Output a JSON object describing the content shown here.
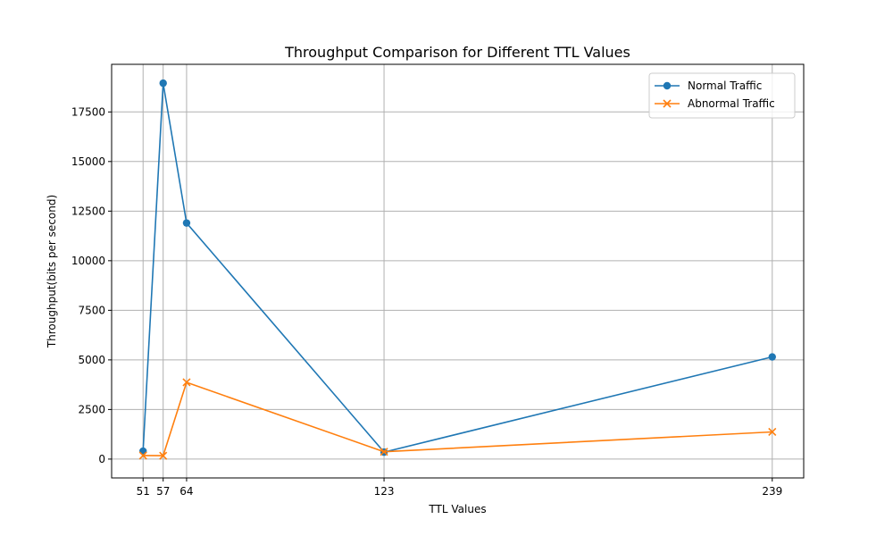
{
  "chart_data": {
    "type": "line",
    "title": "Throughput Comparison for Different TTL Values",
    "xlabel": "TTL Values",
    "ylabel": "Throughput(bits per second)",
    "x": [
      51,
      57,
      64,
      123,
      239
    ],
    "xlim": [
      41.6,
      248.4
    ],
    "ylim": [
      -950,
      19900
    ],
    "x_ticks": [
      "51",
      "57",
      "64",
      "123",
      "239"
    ],
    "y_ticks": [
      0,
      2500,
      5000,
      7500,
      10000,
      12500,
      15000,
      17500
    ],
    "grid": true,
    "legend_position": "top-right",
    "series": [
      {
        "name": "Normal Traffic",
        "color": "#1f77b4",
        "marker": "circle",
        "values": [
          400,
          18950,
          11900,
          350,
          5150
        ]
      },
      {
        "name": "Abnormal Traffic",
        "color": "#ff7f0e",
        "marker": "x",
        "values": [
          180,
          170,
          3870,
          370,
          1370
        ]
      }
    ]
  }
}
